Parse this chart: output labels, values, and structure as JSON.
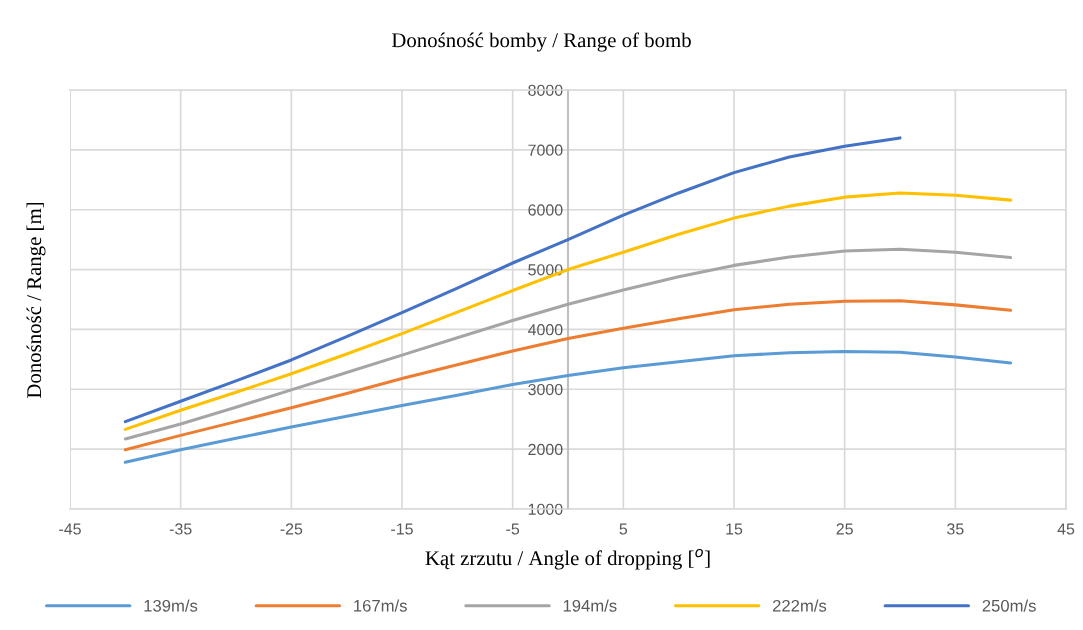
{
  "chart_data": {
    "type": "line",
    "title": "Donośność bomby / Range of bomb",
    "xlabel": "Kąt zrzutu / Angle of dropping [$^{o}$]",
    "ylabel": "Donośność / Range [m]",
    "x": [
      -40,
      -35,
      -30,
      -25,
      -20,
      -15,
      -10,
      -5,
      0,
      5,
      10,
      15,
      20,
      25,
      30,
      35,
      40
    ],
    "series": [
      {
        "name": "139m/s",
        "color": "#5b9bd5",
        "values": [
          1780,
          1990,
          2180,
          2370,
          2550,
          2730,
          2900,
          3080,
          3230,
          3360,
          3460,
          3560,
          3610,
          3630,
          3620,
          3540,
          3440
        ]
      },
      {
        "name": "167m/s",
        "color": "#ed7d31",
        "values": [
          1990,
          2230,
          2460,
          2690,
          2930,
          3180,
          3410,
          3640,
          3850,
          4020,
          4180,
          4330,
          4420,
          4470,
          4480,
          4410,
          4320
        ]
      },
      {
        "name": "194m/s",
        "color": "#a5a5a5",
        "values": [
          2170,
          2420,
          2700,
          2990,
          3280,
          3570,
          3860,
          4150,
          4420,
          4660,
          4880,
          5070,
          5210,
          5310,
          5340,
          5290,
          5200
        ]
      },
      {
        "name": "222m/s",
        "color": "#ffc000",
        "values": [
          2330,
          2650,
          2950,
          3260,
          3590,
          3930,
          4290,
          4650,
          5000,
          5290,
          5590,
          5860,
          6060,
          6210,
          6280,
          6240,
          6160
        ]
      },
      {
        "name": "250m/s",
        "color": "#4472c4",
        "values": [
          2460,
          2800,
          3140,
          3490,
          3880,
          4280,
          4690,
          5110,
          5500,
          5910,
          6280,
          6620,
          6880,
          7060,
          7200,
          null,
          null
        ]
      }
    ],
    "xlim": [
      -45,
      45
    ],
    "xticks": [
      -45,
      -35,
      -25,
      -15,
      -5,
      5,
      15,
      25,
      35,
      45
    ],
    "ylim": [
      1000,
      8000
    ],
    "yticks": [
      1000,
      2000,
      3000,
      4000,
      5000,
      6000,
      7000,
      8000
    ],
    "grid": true,
    "legend": "bottom",
    "marker": "none",
    "line_style": "solid"
  }
}
